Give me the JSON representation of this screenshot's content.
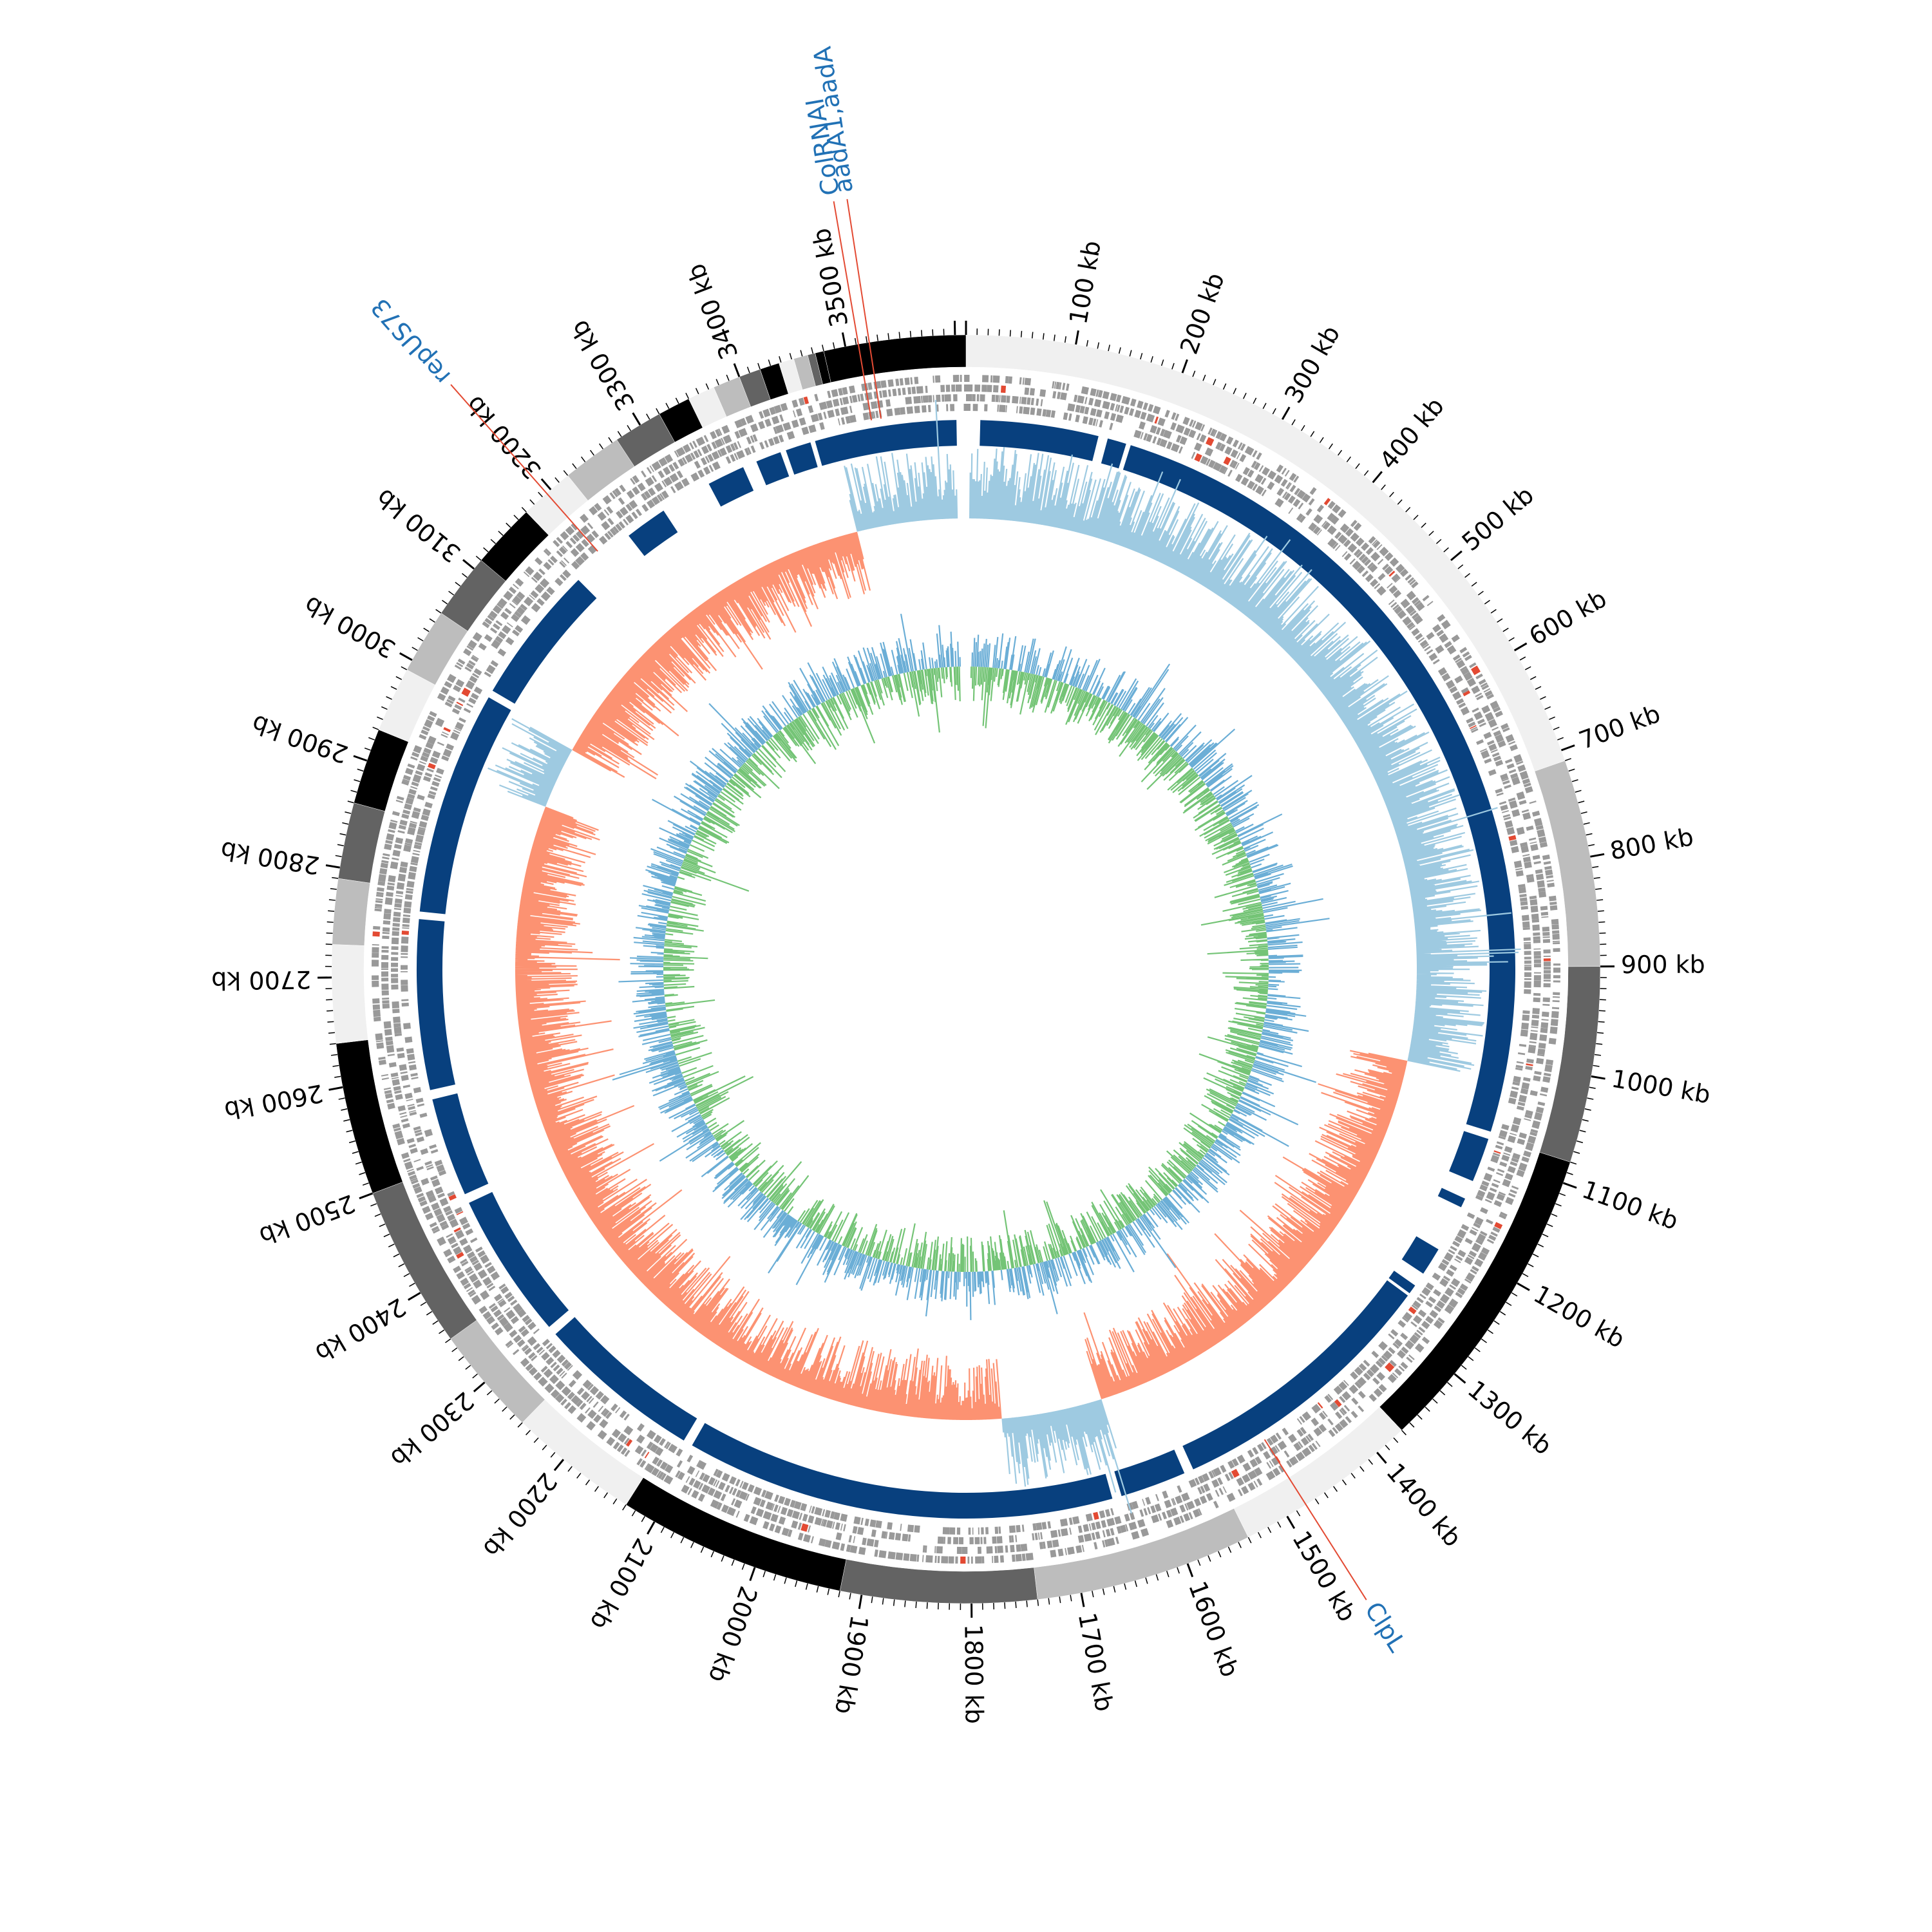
{
  "figure": {
    "genome_length_kb": 3610,
    "orientation": "clockwise-from-top",
    "tick_labels": [
      "100 kb",
      "200 kb",
      "300 kb",
      "400 kb",
      "500 kb",
      "600 kb",
      "700 kb",
      "800 kb",
      "900 kb",
      "1000 kb",
      "1100 kb",
      "1200 kb",
      "1300 kb",
      "1400 kb",
      "1500 kb",
      "1600 kb",
      "1700 kb",
      "1800 kb",
      "1900 kb",
      "2000 kb",
      "2100 kb",
      "2200 kb",
      "2300 kb",
      "2400 kb",
      "2500 kb",
      "2600 kb",
      "2700 kb",
      "2800 kb",
      "2900 kb",
      "3000 kb",
      "3100 kb",
      "3200 kb",
      "3300 kb",
      "3400 kb",
      "3500 kb"
    ],
    "tick_values_kb": [
      100,
      200,
      300,
      400,
      500,
      600,
      700,
      800,
      900,
      1000,
      1100,
      1200,
      1300,
      1400,
      1500,
      1600,
      1700,
      1800,
      1900,
      2000,
      2100,
      2200,
      2300,
      2400,
      2500,
      2600,
      2700,
      2800,
      2900,
      3000,
      3100,
      3200,
      3300,
      3400,
      3500
    ],
    "contig_segments_kb": [
      {
        "start": 0,
        "end": 710,
        "color": "#f0f0f0"
      },
      {
        "start": 710,
        "end": 900,
        "color": "#bdbdbd"
      },
      {
        "start": 900,
        "end": 1080,
        "color": "#636363"
      },
      {
        "start": 1080,
        "end": 1370,
        "color": "#000000"
      },
      {
        "start": 1370,
        "end": 1540,
        "color": "#f0f0f0"
      },
      {
        "start": 1540,
        "end": 1740,
        "color": "#bdbdbd"
      },
      {
        "start": 1740,
        "end": 1920,
        "color": "#636363"
      },
      {
        "start": 1920,
        "end": 2130,
        "color": "#000000"
      },
      {
        "start": 2130,
        "end": 2250,
        "color": "#f0f0f0"
      },
      {
        "start": 2250,
        "end": 2350,
        "color": "#bdbdbd"
      },
      {
        "start": 2350,
        "end": 2500,
        "color": "#636363"
      },
      {
        "start": 2500,
        "end": 2640,
        "color": "#000000"
      },
      {
        "start": 2640,
        "end": 2730,
        "color": "#f0f0f0"
      },
      {
        "start": 2730,
        "end": 2790,
        "color": "#bdbdbd"
      },
      {
        "start": 2790,
        "end": 2860,
        "color": "#636363"
      },
      {
        "start": 2860,
        "end": 2930,
        "color": "#000000"
      },
      {
        "start": 2930,
        "end": 2990,
        "color": "#f0f0f0"
      },
      {
        "start": 2990,
        "end": 3050,
        "color": "#bdbdbd"
      },
      {
        "start": 3050,
        "end": 3110,
        "color": "#636363"
      },
      {
        "start": 3110,
        "end": 3170,
        "color": "#000000"
      },
      {
        "start": 3170,
        "end": 3220,
        "color": "#f0f0f0"
      },
      {
        "start": 3220,
        "end": 3275,
        "color": "#bdbdbd"
      },
      {
        "start": 3275,
        "end": 3320,
        "color": "#636363"
      },
      {
        "start": 3320,
        "end": 3350,
        "color": "#000000"
      },
      {
        "start": 3350,
        "end": 3375,
        "color": "#f0f0f0"
      },
      {
        "start": 3375,
        "end": 3400,
        "color": "#bdbdbd"
      },
      {
        "start": 3400,
        "end": 3420,
        "color": "#636363"
      },
      {
        "start": 3420,
        "end": 3438,
        "color": "#000000"
      },
      {
        "start": 3438,
        "end": 3452,
        "color": "#f0f0f0"
      },
      {
        "start": 3452,
        "end": 3465,
        "color": "#bdbdbd"
      },
      {
        "start": 3465,
        "end": 3472,
        "color": "#636363"
      },
      {
        "start": 3472,
        "end": 3480,
        "color": "#000000"
      },
      {
        "start": 3480,
        "end": 3610,
        "color": "#000000"
      }
    ],
    "blast_blocks_kb": [
      {
        "start": 15,
        "end": 140
      },
      {
        "start": 150,
        "end": 170
      },
      {
        "start": 175,
        "end": 1075
      },
      {
        "start": 1083,
        "end": 1130
      },
      {
        "start": 1150,
        "end": 1160
      },
      {
        "start": 1210,
        "end": 1240
      },
      {
        "start": 1255,
        "end": 1265
      },
      {
        "start": 1268,
        "end": 1560
      },
      {
        "start": 1570,
        "end": 1640
      },
      {
        "start": 1650,
        "end": 2105
      },
      {
        "start": 2115,
        "end": 2290
      },
      {
        "start": 2300,
        "end": 2455
      },
      {
        "start": 2465,
        "end": 2570
      },
      {
        "start": 2580,
        "end": 2760
      },
      {
        "start": 2768,
        "end": 3005
      },
      {
        "start": 3013,
        "end": 3160
      },
      {
        "start": 3230,
        "end": 3275
      },
      {
        "start": 3330,
        "end": 3370
      },
      {
        "start": 3385,
        "end": 3412
      },
      {
        "start": 3418,
        "end": 3445
      },
      {
        "start": 3450,
        "end": 3600
      }
    ],
    "annotations": [
      {
        "label": "ClpL",
        "position_kb": 1480
      },
      {
        "label": "repUS73",
        "position_kb": 3195
      },
      {
        "label": "ColRNAI",
        "position_kb": 3512
      },
      {
        "label": "aadA1,aadA",
        "position_kb": 3522
      }
    ],
    "colors": {
      "blast": "#08407e",
      "gene_features": "#999999",
      "gene_highlight": "#e34a33",
      "gc_content_positive": "#9ecae1",
      "gc_content_negative": "#fc9272",
      "gc_skew_positive": "#6baed6",
      "gc_skew_negative": "#74c476",
      "annotation_text": "#2171b5",
      "annotation_line": "#e34a33",
      "ticks": "#000000"
    }
  }
}
